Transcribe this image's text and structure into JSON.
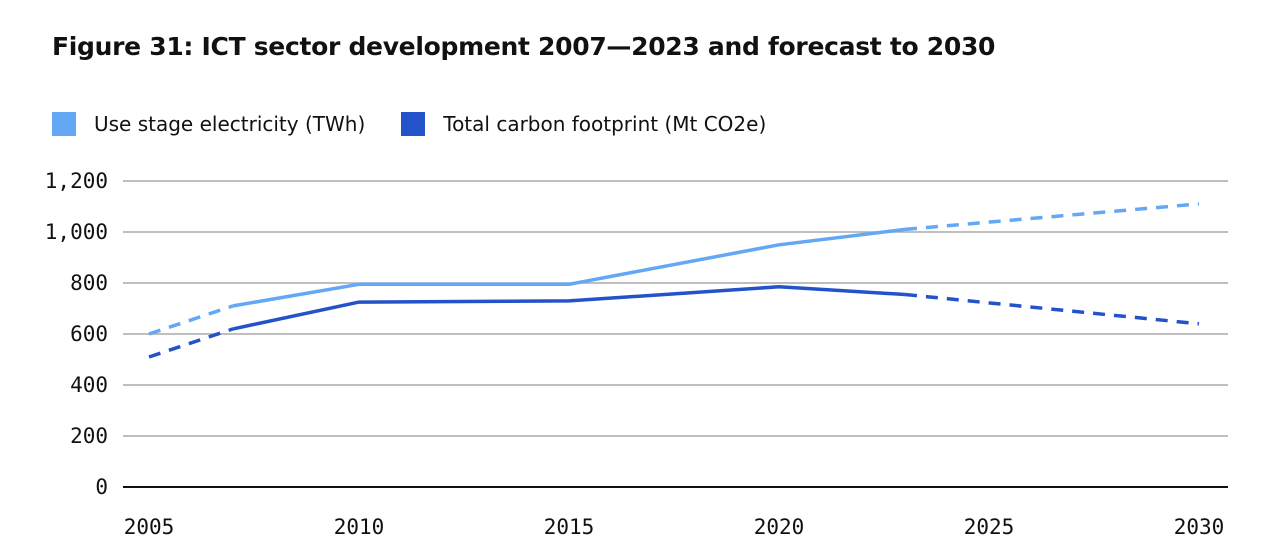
{
  "chart_data": {
    "type": "line",
    "title": "Figure 31: ICT sector development 2007—2023 and forecast to 2030",
    "xlabel": "",
    "ylabel": "",
    "xlim": [
      2005,
      2030
    ],
    "ylim": [
      0,
      1200
    ],
    "grid": true,
    "legend_position": "top-left",
    "x_ticks": [
      "2005",
      "2010",
      "2015",
      "2020",
      "2025",
      "2030"
    ],
    "x_tick_values": [
      2005,
      2010,
      2015,
      2020,
      2025,
      2030
    ],
    "y_ticks": [
      "0",
      "200",
      "400",
      "600",
      "800",
      "1,000",
      "1,200"
    ],
    "y_tick_values": [
      0,
      200,
      400,
      600,
      800,
      1000,
      1200
    ],
    "series": [
      {
        "name": "Use stage electricity (TWh)",
        "color": "#62a8f5",
        "segments": [
          {
            "style": "dashed",
            "label": "backcast",
            "points": [
              [
                2005,
                600
              ],
              [
                2007,
                710
              ]
            ]
          },
          {
            "style": "solid",
            "label": "actual",
            "points": [
              [
                2007,
                710
              ],
              [
                2010,
                795
              ],
              [
                2015,
                795
              ],
              [
                2020,
                950
              ],
              [
                2023,
                1010
              ]
            ]
          },
          {
            "style": "dashed",
            "label": "forecast",
            "points": [
              [
                2023,
                1010
              ],
              [
                2030,
                1110
              ]
            ]
          }
        ]
      },
      {
        "name": "Total carbon footprint (Mt CO2e)",
        "color": "#2453c9",
        "segments": [
          {
            "style": "dashed",
            "label": "backcast",
            "points": [
              [
                2005,
                510
              ],
              [
                2007,
                620
              ]
            ]
          },
          {
            "style": "solid",
            "label": "actual",
            "points": [
              [
                2007,
                620
              ],
              [
                2010,
                725
              ],
              [
                2015,
                730
              ],
              [
                2020,
                785
              ],
              [
                2023,
                755
              ]
            ]
          },
          {
            "style": "dashed",
            "label": "forecast",
            "points": [
              [
                2023,
                755
              ],
              [
                2030,
                640
              ]
            ]
          }
        ]
      }
    ]
  }
}
